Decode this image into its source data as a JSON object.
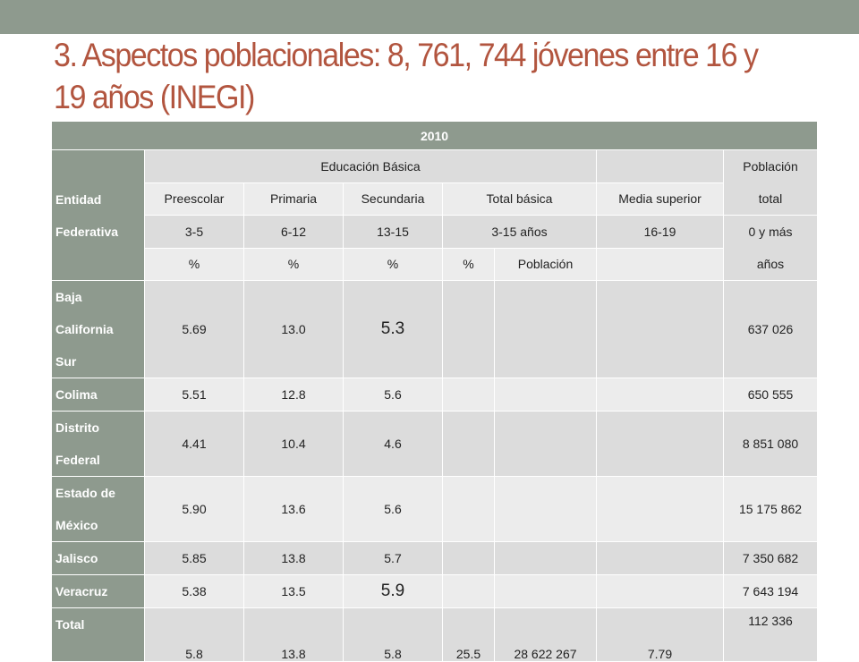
{
  "title": "3. Aspectos poblacionales: 8, 761, 744 jóvenes entre 16 y 19 años (INEGI)",
  "table": {
    "year": "2010",
    "entidad_label": [
      "Entidad",
      "Federativa"
    ],
    "educacion_basica": "Educación Básica",
    "poblacion_total_header": [
      "Población",
      "total"
    ],
    "columns": [
      "Preescolar",
      "Primaria",
      "Secundaria",
      "Total básica",
      "Media superior"
    ],
    "ages": [
      "3-5",
      "6-12",
      "13-15",
      "3-15 años",
      "16-19"
    ],
    "ages_total": "0 y más",
    "units": [
      "%",
      "%",
      "%",
      "%",
      "Población"
    ],
    "units_total": "años",
    "rows": [
      {
        "entidad": [
          "Baja",
          "California",
          "Sur"
        ],
        "preescolar": "5.69",
        "primaria": "13.0",
        "secundaria": "5.3",
        "total_pct": "",
        "total_pob": "",
        "media": "",
        "poblacion": "637 026"
      },
      {
        "entidad": [
          "Colima"
        ],
        "preescolar": "5.51",
        "primaria": "12.8",
        "secundaria": "5.6",
        "total_pct": "",
        "total_pob": "",
        "media": "",
        "poblacion": "650 555"
      },
      {
        "entidad": [
          "Distrito",
          "Federal"
        ],
        "preescolar": "4.41",
        "primaria": "10.4",
        "secundaria": "4.6",
        "total_pct": "",
        "total_pob": "",
        "media": "",
        "poblacion": "8 851 080"
      },
      {
        "entidad": [
          "Estado de",
          "México"
        ],
        "preescolar": "5.90",
        "primaria": "13.6",
        "secundaria": "5.6",
        "total_pct": "",
        "total_pob": "",
        "media": "",
        "poblacion": "15 175 862"
      },
      {
        "entidad": [
          "Jalisco"
        ],
        "preescolar": "5.85",
        "primaria": "13.8",
        "secundaria": "5.7",
        "total_pct": "",
        "total_pob": "",
        "media": "",
        "poblacion": "7 350 682"
      },
      {
        "entidad": [
          "Veracruz"
        ],
        "preescolar": "5.38",
        "primaria": "13.5",
        "secundaria": "5.9",
        "total_pct": "",
        "total_pob": "",
        "media": "",
        "poblacion": "7 643 194"
      },
      {
        "entidad": [
          "Total"
        ],
        "preescolar": "5.8",
        "primaria": "13.8",
        "secundaria": "5.8",
        "total_pct": "25.5",
        "total_pob": "28 622 267",
        "media": "7.79",
        "poblacion": "112 336"
      }
    ]
  }
}
